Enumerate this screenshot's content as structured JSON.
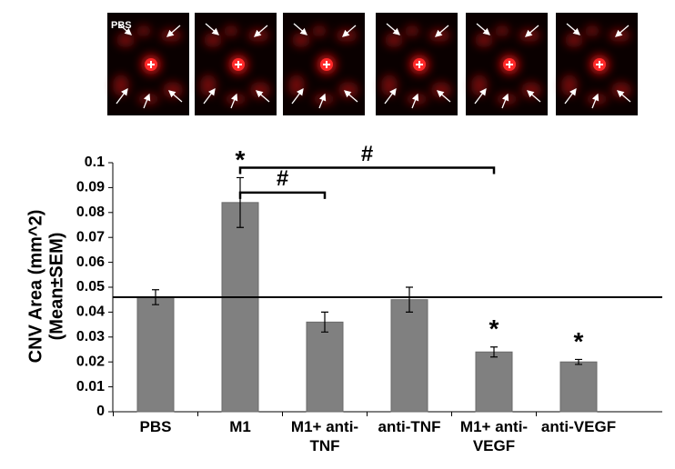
{
  "chart_data": {
    "type": "bar",
    "panel_label": "PBS",
    "ylabel": [
      "CNV Area (mm^2)",
      "(Mean±SEM)"
    ],
    "categories": [
      "PBS",
      "M1",
      "M1+ anti-TNF",
      "anti-TNF",
      "M1+ anti-VEGF",
      "anti-VEGF"
    ],
    "values": [
      0.046,
      0.084,
      0.036,
      0.045,
      0.024,
      0.02
    ],
    "errors": [
      0.003,
      0.01,
      0.004,
      0.005,
      0.002,
      0.001
    ],
    "color": "#808080",
    "ylim": [
      0,
      0.1
    ],
    "yticks": [
      0,
      0.01,
      0.02,
      0.03,
      0.04,
      0.05,
      0.06,
      0.07,
      0.08,
      0.09,
      0.1
    ],
    "reference_line": 0.046,
    "stars": [
      {
        "text": "*",
        "category": "M1"
      },
      {
        "text": "*",
        "category": "M1+ anti-VEGF"
      },
      {
        "text": "*",
        "category": "anti-VEGF"
      }
    ],
    "brackets": [
      {
        "text": "#",
        "from": "M1",
        "to": "M1+ anti-TNF",
        "y": 0.088
      },
      {
        "text": "#",
        "from": "M1",
        "to": "M1+ anti-VEGF",
        "y": 0.098
      }
    ]
  }
}
